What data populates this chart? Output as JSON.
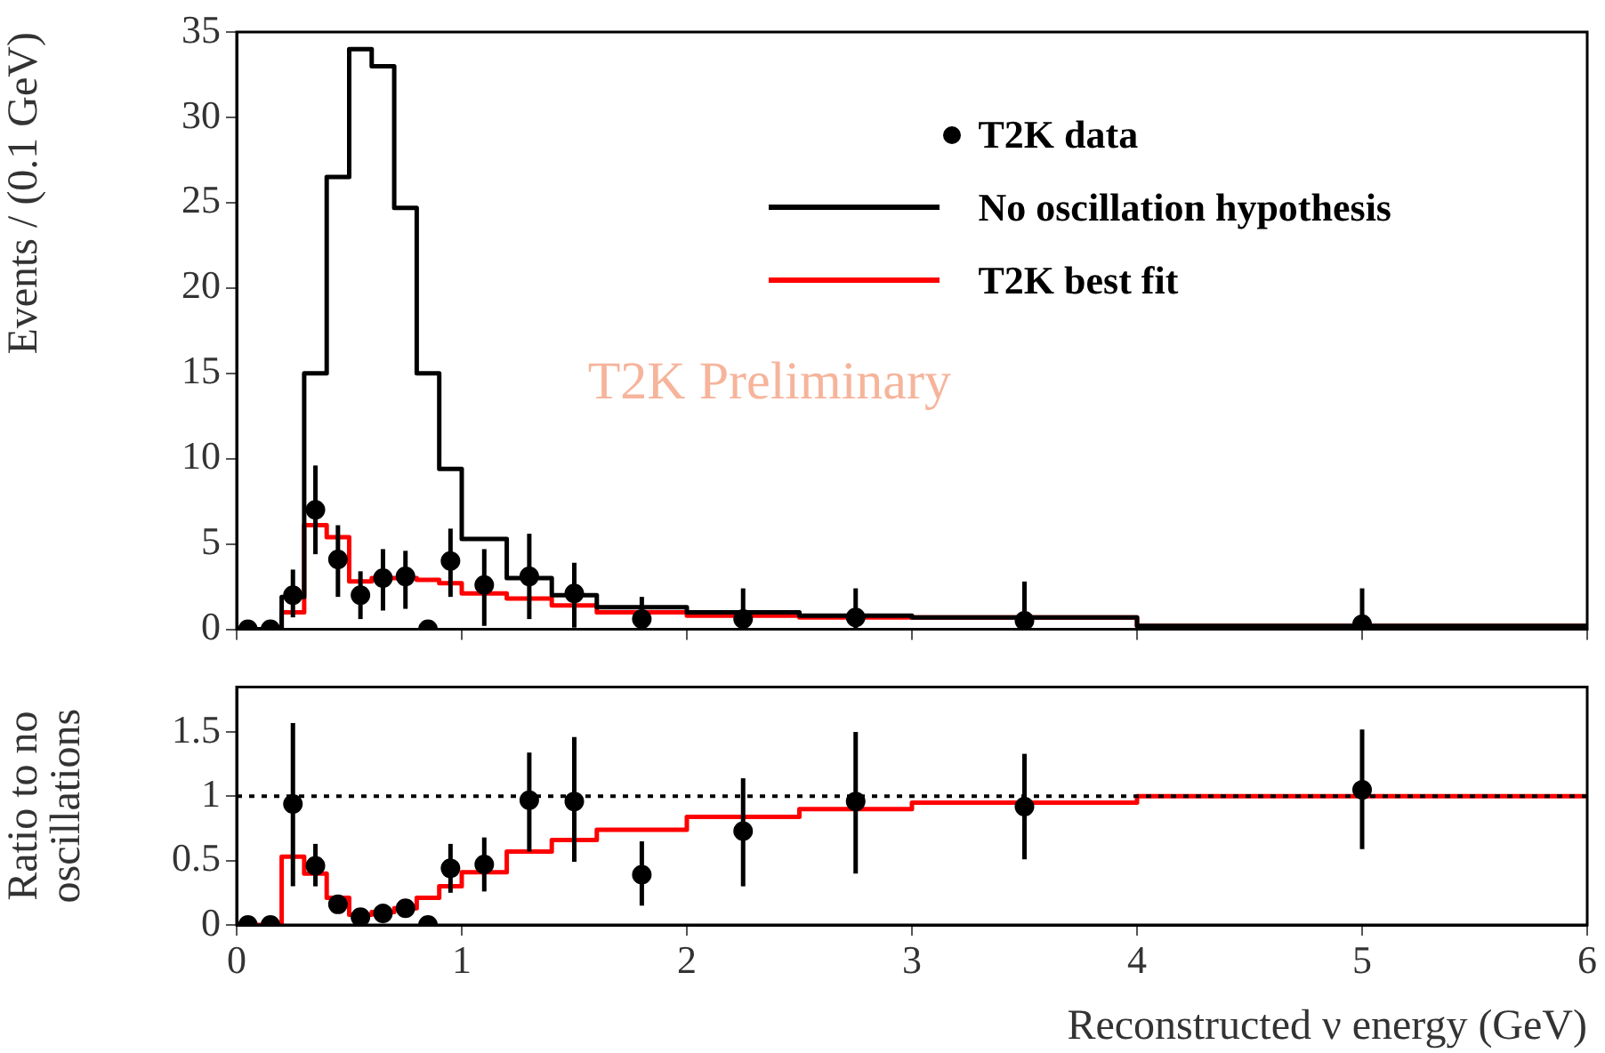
{
  "chart_data": [
    {
      "type": "histogram",
      "ylabel": "Events / (0.1 GeV)",
      "legend": "top right",
      "marker": "circle",
      "tick_labels": "y",
      "annotations": [
        "T2K Preliminary"
      ],
      "xlim": [
        0,
        6
      ],
      "xticks": [
        0,
        1,
        2,
        3,
        4,
        5,
        6
      ],
      "ylim": [
        0,
        35
      ],
      "yticks": [
        0,
        5,
        10,
        15,
        20,
        25,
        30,
        35
      ],
      "bins": [
        0,
        0.1,
        0.2,
        0.3,
        0.4,
        0.5,
        0.6,
        0.7,
        0.8,
        0.9,
        1.0,
        1.2,
        1.4,
        1.6,
        2.0,
        2.5,
        3.0,
        4.0,
        6.0
      ],
      "series": [
        {
          "type": "scatter",
          "name": "T2K data",
          "color": "#000000",
          "x": [
            0.05,
            0.15,
            0.25,
            0.35,
            0.45,
            0.55,
            0.65,
            0.75,
            0.85,
            0.95,
            1.1,
            1.3,
            1.5,
            1.8,
            2.25,
            2.75,
            3.5,
            5.0
          ],
          "values": [
            0,
            0,
            2.0,
            7.0,
            4.1,
            2.0,
            3.0,
            3.1,
            0,
            4.0,
            2.6,
            3.1,
            2.1,
            0.6,
            0.6,
            0.7,
            0.5,
            0.3
          ],
          "errors": [
            null,
            null,
            [
              0.7,
              3.5
            ],
            [
              4.4,
              9.6
            ],
            [
              1.9,
              6.1
            ],
            [
              0.6,
              3.4
            ],
            [
              1.1,
              4.7
            ],
            [
              1.2,
              4.6
            ],
            null,
            [
              1.9,
              5.9
            ],
            [
              0.2,
              4.7
            ],
            [
              0.6,
              5.6
            ],
            [
              0.1,
              3.9
            ],
            [
              0,
              1.9
            ],
            [
              0,
              2.4
            ],
            [
              0,
              2.4
            ],
            [
              0,
              2.8
            ],
            [
              0,
              2.4
            ]
          ]
        },
        {
          "name": "No oscillation hypothesis",
          "color": "#000000",
          "values": [
            0,
            0,
            1.9,
            15,
            26.5,
            34,
            33,
            24.7,
            15,
            9.4,
            5.3,
            3.0,
            2.0,
            1.3,
            1.0,
            0.8,
            0.7,
            0.2
          ]
        },
        {
          "name": "T2K best fit",
          "color": "#ff0000",
          "values": [
            0,
            0,
            1.0,
            6.1,
            5.4,
            2.8,
            3.0,
            3.0,
            2.9,
            2.7,
            2.1,
            1.8,
            1.4,
            1.0,
            0.8,
            0.7,
            0.7,
            0.2
          ]
        }
      ]
    },
    {
      "type": "histogram",
      "xlabel": "Reconstructed ν energy (GeV)",
      "ylabel": "Ratio to no oscillations",
      "marker": "circle",
      "xlim": [
        0,
        6
      ],
      "xticks": [
        0,
        1,
        2,
        3,
        4,
        5,
        6
      ],
      "ylim": [
        0,
        1.85
      ],
      "yticks": [
        0,
        0.5,
        1,
        1.5
      ],
      "ref_lines": [
        {
          "axis": "y",
          "value": 1,
          "color": "#000000",
          "line_style": "dotted"
        }
      ],
      "bins": [
        0,
        0.1,
        0.2,
        0.3,
        0.4,
        0.5,
        0.6,
        0.7,
        0.8,
        0.9,
        1.0,
        1.2,
        1.4,
        1.6,
        2.0,
        2.5,
        3.0,
        4.0,
        6.0
      ],
      "series": [
        {
          "color": "#ff0000",
          "values": [
            0,
            0,
            0.53,
            0.4,
            0.21,
            0.08,
            0.1,
            0.13,
            0.21,
            0.3,
            0.41,
            0.57,
            0.66,
            0.74,
            0.84,
            0.9,
            0.95,
            1.0
          ]
        },
        {
          "type": "scatter",
          "color": "#000000",
          "x": [
            0.05,
            0.15,
            0.25,
            0.35,
            0.45,
            0.55,
            0.65,
            0.75,
            0.85,
            0.95,
            1.1,
            1.3,
            1.5,
            1.8,
            2.25,
            2.75,
            3.5,
            5.0
          ],
          "values": [
            0,
            0,
            0.94,
            0.46,
            0.16,
            0.06,
            0.09,
            0.13,
            0,
            0.44,
            0.47,
            0.97,
            0.96,
            0.39,
            0.73,
            0.96,
            0.92,
            1.05
          ],
          "errors": [
            null,
            null,
            [
              0.3,
              1.57
            ],
            [
              0.3,
              0.63
            ],
            [
              0.1,
              0.23
            ],
            null,
            null,
            null,
            null,
            [
              0.25,
              0.63
            ],
            [
              0.26,
              0.68
            ],
            [
              0.57,
              1.34
            ],
            [
              0.49,
              1.46
            ],
            [
              0.15,
              0.65
            ],
            [
              0.3,
              1.14
            ],
            [
              0.4,
              1.5
            ],
            [
              0.51,
              1.33
            ],
            [
              0.59,
              1.52
            ]
          ]
        }
      ]
    }
  ]
}
